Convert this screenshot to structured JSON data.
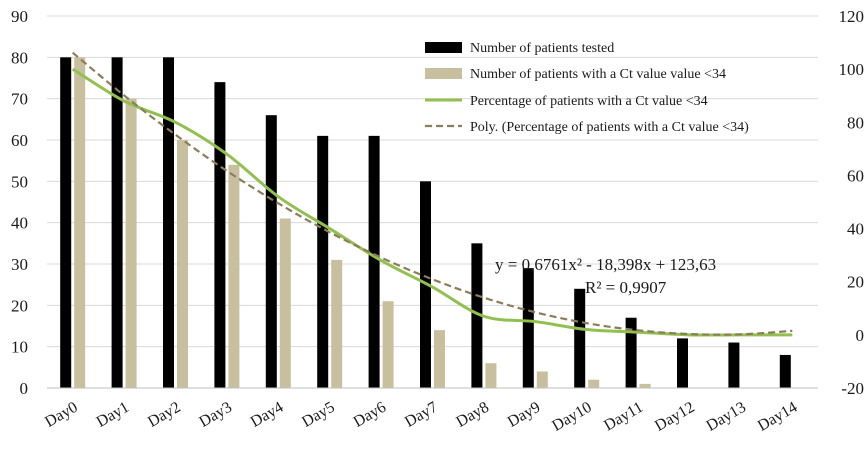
{
  "chart_data": {
    "type": "bar",
    "categories": [
      "Day0",
      "Day1",
      "Day2",
      "Day3",
      "Day4",
      "Day5",
      "Day6",
      "Day7",
      "Day8",
      "Day9",
      "Day10",
      "Day11",
      "Day12",
      "Day13",
      "Day14"
    ],
    "series": [
      {
        "name": "Number of patients tested",
        "type": "bar",
        "axis": "left",
        "color": "#000000",
        "values": [
          80,
          80,
          80,
          74,
          66,
          61,
          61,
          50,
          35,
          29,
          24,
          17,
          12,
          11,
          8
        ]
      },
      {
        "name": "Number of patients with a Ct value value <34",
        "type": "bar",
        "axis": "left",
        "color": "#c8bf9f",
        "values": [
          80,
          70,
          60,
          54,
          41,
          31,
          21,
          14,
          6,
          4,
          2,
          1,
          0,
          0,
          0
        ]
      },
      {
        "name": "Percentage of patients with a Ct value <34",
        "type": "line",
        "axis": "right",
        "color": "#92c050",
        "values": [
          100,
          88,
          80,
          68,
          52,
          40,
          28,
          18,
          7,
          5,
          2,
          1,
          0,
          0,
          0
        ]
      },
      {
        "name": "Poly. (Percentage of patients with a Ct value <34)",
        "type": "line",
        "style": "dashed",
        "axis": "right",
        "color": "#8c7d5a",
        "values": [
          106.2,
          90.1,
          75.3,
          61.7,
          49.5,
          38.6,
          29.1,
          20.9,
          14.0,
          8.5,
          4.4,
          1.7,
          0.3,
          0.2,
          1.5
        ]
      }
    ],
    "y_left": {
      "ylim": [
        0,
        90
      ],
      "ticks": [
        "0",
        "10",
        "20",
        "30",
        "40",
        "50",
        "60",
        "70",
        "80",
        "90"
      ]
    },
    "y_right": {
      "ylim": [
        -20,
        120
      ],
      "ticks": [
        "-20",
        "0",
        "20",
        "40",
        "60",
        "80",
        "100",
        "120"
      ]
    },
    "grid": true,
    "legend_position": "top-right",
    "annotation": {
      "equation": "y = 0,6761x² - 18,398x + 123,63",
      "r2": "R² = 0,9907"
    },
    "title": "",
    "xlabel": "",
    "ylabel": ""
  }
}
